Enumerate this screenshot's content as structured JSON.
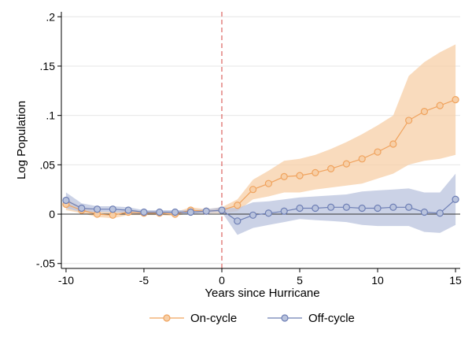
{
  "chart_data": {
    "type": "line",
    "title": "",
    "xlabel": "Years since Hurricane",
    "ylabel": "Log Population",
    "xlim": [
      -10.3,
      15.3
    ],
    "ylim": [
      -0.055,
      0.205
    ],
    "xticks": [
      -10,
      -5,
      0,
      5,
      10,
      15
    ],
    "xtick_labels": [
      "-10",
      "-5",
      "0",
      "5",
      "10",
      "15"
    ],
    "yticks": [
      -0.05,
      0,
      0.05,
      0.1,
      0.15,
      0.2
    ],
    "ytick_labels": [
      "-.05",
      "0",
      ".05",
      ".1",
      ".15",
      ".2"
    ],
    "grid": true,
    "reference_lines": {
      "x": 0,
      "y": 0
    },
    "x": [
      -10,
      -9,
      -8,
      -7,
      -6,
      -5,
      -4,
      -3,
      -2,
      -1,
      0,
      1,
      2,
      3,
      4,
      5,
      6,
      7,
      8,
      9,
      10,
      11,
      12,
      13,
      14,
      15
    ],
    "series": [
      {
        "name": "On-cycle",
        "color": "#f0a35e",
        "band_color": "#f7cfa7",
        "values": [
          0.01,
          0.004,
          0.0,
          -0.001,
          0.002,
          0.001,
          0.001,
          0.0,
          0.004,
          0.003,
          0.004,
          0.009,
          0.025,
          0.031,
          0.038,
          0.039,
          0.042,
          0.046,
          0.051,
          0.056,
          0.063,
          0.071,
          0.095,
          0.104,
          0.11,
          0.116
        ],
        "ci_lower": [
          0.004,
          0.001,
          -0.003,
          -0.004,
          -0.001,
          -0.001,
          -0.001,
          -0.002,
          0.001,
          0.001,
          0.001,
          0.003,
          0.015,
          0.018,
          0.022,
          0.022,
          0.025,
          0.027,
          0.029,
          0.031,
          0.036,
          0.041,
          0.05,
          0.054,
          0.056,
          0.06
        ],
        "ci_upper": [
          0.016,
          0.007,
          0.003,
          0.002,
          0.005,
          0.003,
          0.003,
          0.002,
          0.007,
          0.005,
          0.007,
          0.015,
          0.035,
          0.044,
          0.054,
          0.056,
          0.06,
          0.066,
          0.073,
          0.081,
          0.09,
          0.1,
          0.14,
          0.154,
          0.164,
          0.172
        ]
      },
      {
        "name": "Off-cycle",
        "color": "#6e7fb5",
        "band_color": "#b9c3dd",
        "values": [
          0.014,
          0.006,
          0.005,
          0.005,
          0.004,
          0.002,
          0.002,
          0.002,
          0.002,
          0.003,
          0.004,
          -0.007,
          -0.001,
          0.001,
          0.003,
          0.006,
          0.006,
          0.007,
          0.007,
          0.006,
          0.006,
          0.007,
          0.007,
          0.002,
          0.001,
          0.015
        ],
        "ci_lower": [
          0.006,
          0.002,
          0.002,
          0.002,
          0.001,
          0.0,
          0.0,
          0.0,
          0.0,
          0.001,
          0.002,
          -0.021,
          -0.014,
          -0.011,
          -0.008,
          -0.005,
          -0.006,
          -0.007,
          -0.008,
          -0.011,
          -0.012,
          -0.012,
          -0.012,
          -0.018,
          -0.019,
          -0.011
        ],
        "ci_upper": [
          0.022,
          0.011,
          0.008,
          0.008,
          0.007,
          0.004,
          0.004,
          0.004,
          0.004,
          0.005,
          0.007,
          0.006,
          0.012,
          0.013,
          0.015,
          0.017,
          0.018,
          0.019,
          0.02,
          0.023,
          0.024,
          0.025,
          0.026,
          0.022,
          0.022,
          0.041
        ]
      }
    ],
    "legend": {
      "position": "bottom",
      "entries": [
        "On-cycle",
        "Off-cycle"
      ]
    }
  }
}
